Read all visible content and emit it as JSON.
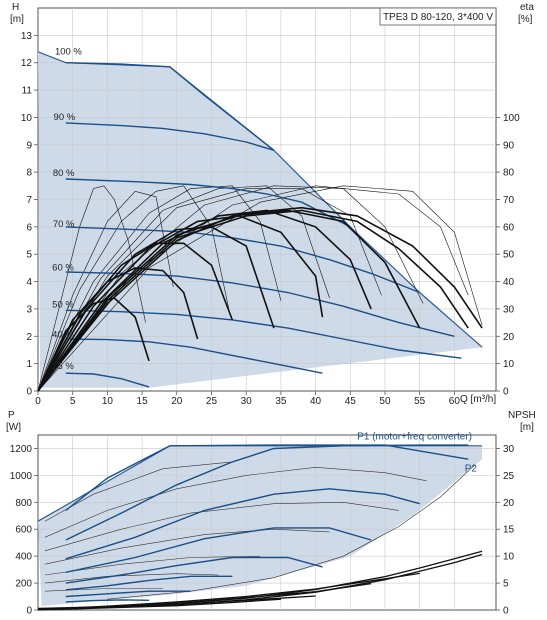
{
  "chart_data": [
    {
      "type": "line",
      "title": "TPE3 D 80-120, 3*400 V",
      "xlabel": "Q [m³/h]",
      "ylabel_left": [
        "H",
        "[m]"
      ],
      "ylabel_right": [
        "eta",
        "[%]"
      ],
      "xlim": [
        0,
        66
      ],
      "ylim": [
        0,
        14
      ],
      "ylim_right": [
        0,
        140
      ],
      "x_ticks": [
        0,
        5,
        10,
        15,
        20,
        25,
        30,
        35,
        40,
        45,
        50,
        55,
        60
      ],
      "y_ticks": [
        0,
        1,
        2,
        3,
        4,
        5,
        6,
        7,
        8,
        9,
        10,
        11,
        12,
        13
      ],
      "y_ticks_right": [
        0,
        10,
        20,
        30,
        40,
        50,
        60,
        70,
        80,
        90,
        100
      ],
      "grid": true,
      "speed_labels": [
        {
          "label": "100 %",
          "x": 1.0,
          "y": 12.3
        },
        {
          "label": "90 %",
          "x": 0.8,
          "y": 9.9
        },
        {
          "label": "80 %",
          "x": 0.7,
          "y": 7.85
        },
        {
          "label": "70 %",
          "x": 0.7,
          "y": 6.0
        },
        {
          "label": "60 %",
          "x": 0.6,
          "y": 4.4
        },
        {
          "label": "50 %",
          "x": 0.6,
          "y": 3.05
        },
        {
          "label": "40 %",
          "x": 0.6,
          "y": 1.95
        },
        {
          "label": "25 %",
          "x": 0.6,
          "y": 0.8
        }
      ],
      "envelope": [
        [
          0,
          12.4
        ],
        [
          4,
          12.0
        ],
        [
          19,
          11.85
        ],
        [
          34,
          8.8
        ],
        [
          45,
          6.0
        ],
        [
          55,
          3.6
        ],
        [
          64,
          1.6
        ],
        [
          16,
          0.12
        ],
        [
          0.3,
          0.12
        ]
      ],
      "head_curves": [
        {
          "speed": "100 %",
          "x": [
            4,
            12,
            19,
            24,
            30,
            34
          ],
          "y": [
            12.0,
            11.95,
            11.85,
            10.8,
            9.6,
            8.8
          ]
        },
        {
          "speed": "90 %",
          "x": [
            4,
            12,
            18,
            24,
            30,
            34
          ],
          "y": [
            9.8,
            9.7,
            9.6,
            9.4,
            9.1,
            8.8
          ]
        },
        {
          "speed": "80 %",
          "x": [
            4,
            14,
            22,
            28,
            33,
            38,
            45
          ],
          "y": [
            7.75,
            7.65,
            7.55,
            7.4,
            7.2,
            6.9,
            6.0
          ]
        },
        {
          "speed": "70 %",
          "x": [
            4,
            14,
            22,
            28,
            35,
            42,
            48,
            55
          ],
          "y": [
            6.0,
            5.9,
            5.8,
            5.6,
            5.3,
            4.8,
            4.3,
            3.6
          ]
        },
        {
          "speed": "60 %",
          "x": [
            4,
            12,
            20,
            28,
            36,
            44,
            52,
            60
          ],
          "y": [
            4.35,
            4.3,
            4.2,
            3.95,
            3.6,
            3.1,
            2.5,
            2.0
          ]
        },
        {
          "speed": "50 %",
          "x": [
            4,
            12,
            20,
            28,
            36,
            44,
            52,
            61
          ],
          "y": [
            2.95,
            2.9,
            2.8,
            2.6,
            2.3,
            1.9,
            1.5,
            1.2
          ]
        },
        {
          "speed": "40 %",
          "x": [
            4,
            10,
            16,
            22,
            28,
            34,
            41
          ],
          "y": [
            1.9,
            1.88,
            1.8,
            1.6,
            1.3,
            1.0,
            0.65
          ]
        },
        {
          "speed": "25 %",
          "x": [
            4,
            8,
            12,
            16
          ],
          "y": [
            0.65,
            0.62,
            0.45,
            0.15
          ]
        }
      ],
      "eta_thick_curves": [
        {
          "x": [
            0,
            4,
            8,
            11,
            14,
            16
          ],
          "y": [
            0,
            22,
            32,
            34,
            27,
            11
          ]
        },
        {
          "x": [
            0,
            5,
            10,
            14,
            18,
            21,
            23
          ],
          "y": [
            0,
            26,
            40,
            45,
            44,
            36,
            19
          ]
        },
        {
          "x": [
            0,
            6,
            12,
            17,
            21,
            25,
            28
          ],
          "y": [
            0,
            28,
            46,
            54,
            54,
            46,
            26
          ]
        },
        {
          "x": [
            0,
            7,
            14,
            20,
            25,
            30,
            34
          ],
          "y": [
            0,
            30,
            50,
            59,
            60,
            53,
            23
          ]
        },
        {
          "x": [
            0,
            8,
            16,
            23,
            29,
            35,
            40,
            41
          ],
          "y": [
            0,
            31,
            52,
            62,
            64,
            58,
            42,
            27
          ]
        },
        {
          "x": [
            0,
            9,
            18,
            26,
            33,
            40,
            45,
            48
          ],
          "y": [
            0,
            32,
            54,
            64,
            66,
            60,
            48,
            30
          ]
        },
        {
          "x": [
            0,
            10,
            20,
            28,
            36,
            44,
            50,
            55
          ],
          "y": [
            0,
            32,
            55,
            64,
            66,
            62,
            47,
            23
          ]
        },
        {
          "x": [
            0,
            10,
            20,
            30,
            38,
            46,
            52,
            58,
            62
          ],
          "y": [
            0,
            33,
            56,
            64,
            66,
            62,
            52,
            38,
            23
          ]
        },
        {
          "x": [
            0,
            10,
            20,
            30,
            38,
            46,
            54,
            60,
            64
          ],
          "y": [
            0,
            34,
            57,
            65,
            67,
            64,
            53,
            38,
            23
          ]
        }
      ],
      "eta_thin_curves": [
        {
          "x": [
            0,
            3,
            6,
            8,
            9.5
          ],
          "y": [
            0,
            30,
            60,
            74,
            75
          ]
        },
        {
          "x": [
            9.5,
            11,
            13,
            15.5
          ],
          "y": [
            75,
            70,
            55,
            25
          ]
        },
        {
          "x": [
            0,
            5,
            10,
            14,
            17,
            19.5
          ],
          "y": [
            0,
            35,
            62,
            73,
            71,
            38
          ]
        },
        {
          "x": [
            0,
            6,
            12,
            17,
            21,
            25,
            27.5
          ],
          "y": [
            0,
            37,
            62,
            73,
            75,
            60,
            30
          ]
        },
        {
          "x": [
            0,
            8,
            16,
            22,
            28,
            32,
            35
          ],
          "y": [
            0,
            40,
            65,
            74,
            75,
            62,
            33
          ]
        },
        {
          "x": [
            0,
            9,
            18,
            26,
            33,
            38,
            42
          ],
          "y": [
            0,
            41,
            66,
            74,
            75,
            64,
            34
          ]
        },
        {
          "x": [
            0,
            10,
            20,
            30,
            38,
            45,
            49.5
          ],
          "y": [
            0,
            42,
            67,
            74,
            74,
            64,
            35
          ]
        },
        {
          "x": [
            0,
            12,
            24,
            34,
            44,
            50,
            55.5
          ],
          "y": [
            0,
            43,
            68,
            75,
            74,
            60,
            32
          ]
        },
        {
          "x": [
            0,
            14,
            28,
            40,
            52,
            58,
            62
          ],
          "y": [
            0,
            44,
            68,
            75,
            72,
            60,
            35
          ]
        },
        {
          "x": [
            0,
            16,
            32,
            44,
            54,
            60,
            64
          ],
          "y": [
            0,
            45,
            69,
            75,
            73,
            58,
            24
          ]
        }
      ]
    },
    {
      "type": "line",
      "xlabel": "",
      "ylabel_left": [
        "P",
        "[W]"
      ],
      "ylabel_right": [
        "NPSH",
        "[m]"
      ],
      "xlim": [
        0,
        66
      ],
      "ylim": [
        0,
        1300
      ],
      "ylim_right": [
        0,
        32.5
      ],
      "y_ticks": [
        0,
        200,
        400,
        600,
        800,
        1000,
        1200
      ],
      "y_ticks_right": [
        0,
        5,
        10,
        15,
        20,
        25,
        30
      ],
      "grid": true,
      "series_labels": [
        {
          "label": "P1 (motor+freq converter)",
          "x": 46,
          "y": 1265
        },
        {
          "label": "P2",
          "x": 61.5,
          "y": 1030
        }
      ],
      "envelope": [
        [
          0,
          660
        ],
        [
          19,
          1220
        ],
        [
          64,
          1220
        ],
        [
          64,
          1120
        ],
        [
          54,
          700
        ],
        [
          45,
          400
        ],
        [
          30,
          180
        ],
        [
          18,
          110
        ],
        [
          0.5,
          30
        ]
      ],
      "p1_curves": [
        {
          "x": [
            4,
            10,
            19,
            34,
            50,
            62
          ],
          "y": [
            740,
            980,
            1220,
            1225,
            1225,
            1120
          ]
        },
        {
          "x": [
            4,
            12,
            20,
            28,
            34,
            44,
            55,
            62
          ],
          "y": [
            520,
            720,
            930,
            1100,
            1200,
            1220,
            1225,
            1225
          ]
        },
        {
          "x": [
            4,
            14,
            24,
            34,
            42,
            50,
            55
          ],
          "y": [
            380,
            540,
            740,
            860,
            900,
            860,
            790
          ]
        },
        {
          "x": [
            4,
            14,
            24,
            34,
            42,
            48
          ],
          "y": [
            280,
            390,
            530,
            610,
            610,
            520
          ]
        },
        {
          "x": [
            4,
            12,
            20,
            28,
            36,
            41
          ],
          "y": [
            200,
            260,
            330,
            390,
            390,
            320
          ]
        },
        {
          "x": [
            4,
            10,
            16,
            22,
            28
          ],
          "y": [
            150,
            180,
            220,
            250,
            250
          ]
        },
        {
          "x": [
            4,
            10,
            16,
            22
          ],
          "y": [
            100,
            120,
            140,
            140
          ]
        },
        {
          "x": [
            4,
            8,
            12,
            16
          ],
          "y": [
            60,
            70,
            75,
            72
          ]
        }
      ],
      "p2_thin_curves": [
        {
          "x": [
            1,
            8,
            18,
            28
          ],
          "y": [
            660,
            860,
            1050,
            1100
          ]
        },
        {
          "x": [
            1,
            10,
            20,
            30,
            40,
            50,
            56
          ],
          "y": [
            540,
            740,
            900,
            1000,
            1060,
            1020,
            960
          ]
        },
        {
          "x": [
            1,
            12,
            22,
            34,
            44,
            52
          ],
          "y": [
            440,
            600,
            720,
            790,
            800,
            740
          ]
        },
        {
          "x": [
            1,
            12,
            24,
            34,
            42
          ],
          "y": [
            340,
            460,
            560,
            600,
            580
          ]
        },
        {
          "x": [
            1,
            12,
            22,
            32
          ],
          "y": [
            260,
            340,
            390,
            400
          ]
        },
        {
          "x": [
            1,
            10,
            20,
            26
          ],
          "y": [
            200,
            250,
            270,
            260
          ]
        },
        {
          "x": [
            1,
            10,
            18
          ],
          "y": [
            140,
            160,
            160
          ]
        },
        {
          "x": [
            10,
            22,
            34,
            44,
            52,
            58,
            63
          ],
          "y": [
            80,
            140,
            240,
            400,
            620,
            840,
            1080
          ]
        }
      ],
      "npsh_curves": [
        {
          "x": [
            0,
            10,
            20,
            30,
            40,
            50,
            55,
            60,
            64
          ],
          "y": [
            0.3,
            0.6,
            1.2,
            2.2,
            3.8,
            6.2,
            7.8,
            9.5,
            10.9
          ]
        },
        {
          "x": [
            0,
            10,
            20,
            30,
            40,
            50,
            55,
            60,
            64
          ],
          "y": [
            0.2,
            0.5,
            1.0,
            1.9,
            3.3,
            5.6,
            7.2,
            8.8,
            10.3
          ]
        },
        {
          "x": [
            0,
            10,
            20,
            30,
            40,
            48,
            55
          ],
          "y": [
            0.1,
            0.7,
            1.5,
            2.5,
            3.9,
            5.4,
            6.8
          ]
        },
        {
          "x": [
            0,
            10,
            20,
            30,
            40,
            48
          ],
          "y": [
            0.05,
            0.6,
            1.3,
            2.3,
            3.4,
            4.9
          ]
        },
        {
          "x": [
            0,
            10,
            20,
            30,
            40
          ],
          "y": [
            0.05,
            0.5,
            1.0,
            1.8,
            2.6
          ]
        },
        {
          "x": [
            0,
            10,
            20,
            28,
            35
          ],
          "y": [
            0.0,
            0.4,
            0.8,
            1.4,
            2.0
          ]
        }
      ]
    }
  ],
  "colors": {
    "envelope_fill": "#cfdae8",
    "head_curve": "#1a4f8a",
    "eta_curve": "#111111",
    "grid": "#c8c8c8",
    "axis": "#555555",
    "envelope_edge": "#2b5d96"
  }
}
